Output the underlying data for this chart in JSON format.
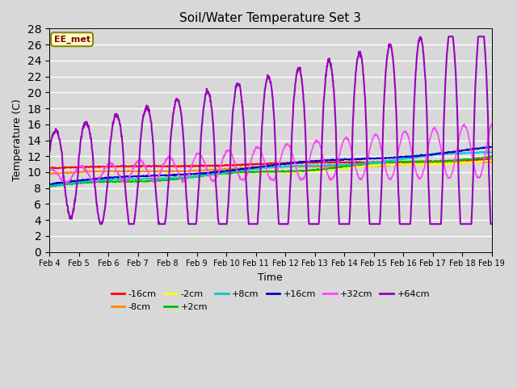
{
  "title": "Soil/Water Temperature Set 3",
  "xlabel": "Time",
  "ylabel": "Temperature (C)",
  "watermark": "EE_met",
  "xlim": [
    0,
    15
  ],
  "ylim": [
    0,
    28
  ],
  "yticks": [
    0,
    2,
    4,
    6,
    8,
    10,
    12,
    14,
    16,
    18,
    20,
    22,
    24,
    26,
    28
  ],
  "xtick_labels": [
    "Feb 4",
    "Feb 5",
    "Feb 6",
    "Feb 7",
    "Feb 8",
    "Feb 9",
    "Feb 10",
    "Feb 11",
    "Feb 12",
    "Feb 13",
    "Feb 14",
    "Feb 15",
    "Feb 16",
    "Feb 17",
    "Feb 18",
    "Feb 19"
  ],
  "figsize": [
    6.4,
    4.8
  ],
  "dpi": 100,
  "bg_color": "#d8d8d8",
  "series_colors": {
    "-16cm": "#ff0000",
    "-8cm": "#ff8800",
    "-2cm": "#ffff00",
    "+2cm": "#00bb00",
    "+8cm": "#00cccc",
    "+16cm": "#0000cc",
    "+32cm": "#ff44ff",
    "+64cm": "#9900bb"
  },
  "legend_order": [
    "-16cm",
    "-8cm",
    "-2cm",
    "+2cm",
    "+8cm",
    "+16cm",
    "+32cm",
    "+64cm"
  ],
  "watermark_facecolor": "#ffffcc",
  "watermark_edgecolor": "#888800",
  "watermark_textcolor": "#880000"
}
